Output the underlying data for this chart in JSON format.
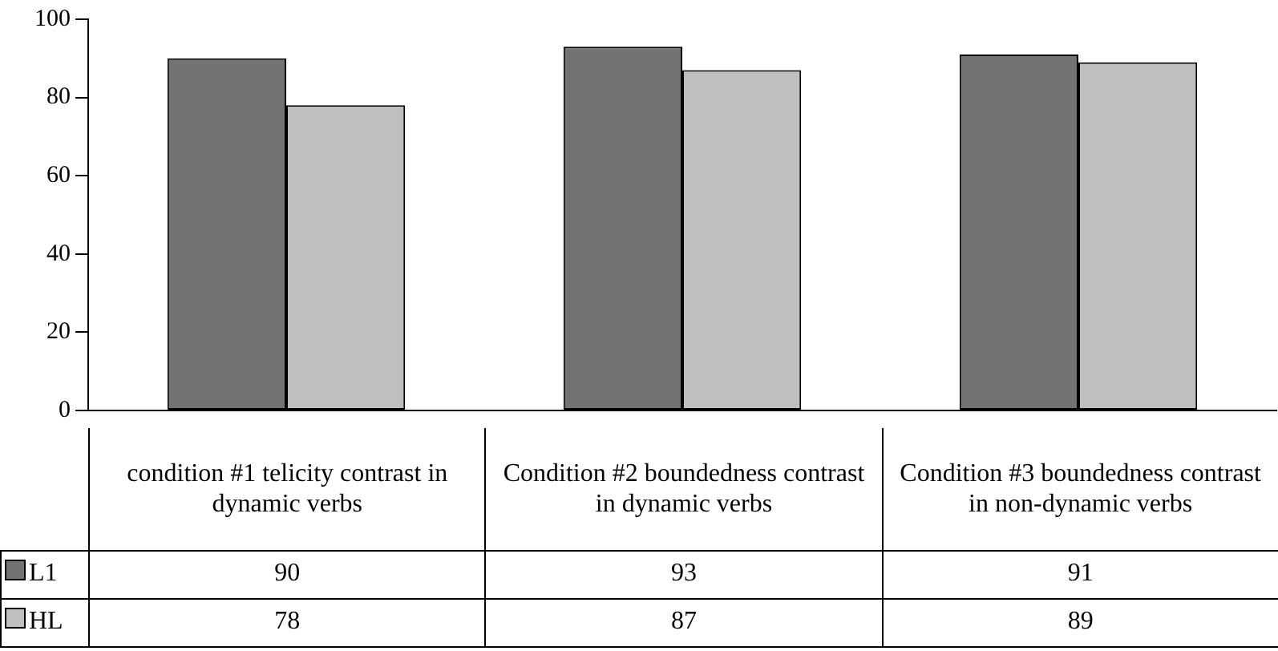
{
  "chart_data": {
    "type": "bar",
    "categories": [
      "condition #1  telicity contrast in dynamic verbs",
      "Condition #2 boundedness contrast in dynamic verbs",
      "Condition #3 boundedness contrast in non-dynamic verbs"
    ],
    "series": [
      {
        "name": "L1",
        "color": "#737373",
        "values": [
          90,
          93,
          91
        ]
      },
      {
        "name": "HL",
        "color": "#bfbfbf",
        "values": [
          78,
          87,
          89
        ]
      }
    ],
    "ylim": [
      0,
      100
    ],
    "yticks": [
      0,
      20,
      40,
      60,
      80,
      100
    ],
    "grid": false,
    "legend": "bottom",
    "data_labels": true
  }
}
